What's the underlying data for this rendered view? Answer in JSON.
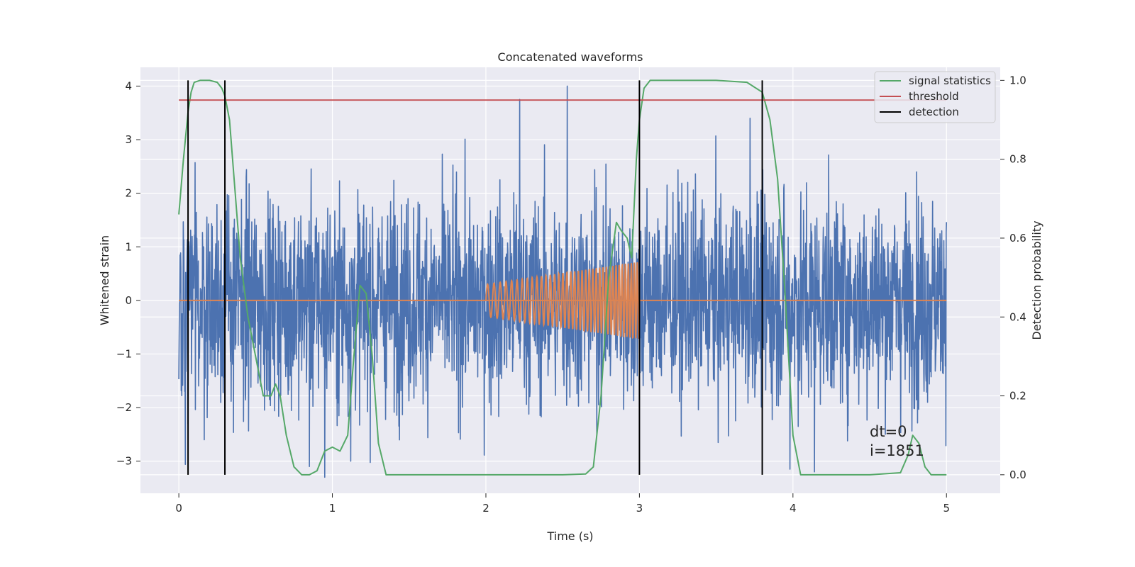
{
  "chart_data": {
    "type": "line",
    "title": "Concatenated waveforms",
    "xlabel": "Time (s)",
    "ylabel": "Whitened strain",
    "y2label": "Detection probability",
    "xlim": [
      -0.25,
      5.35
    ],
    "ylim": [
      -3.6,
      4.35
    ],
    "y2lim": [
      -0.047,
      1.033
    ],
    "x_ticks": [
      0,
      1,
      2,
      3,
      4,
      5
    ],
    "y_ticks": [
      -3,
      -2,
      -1,
      0,
      1,
      2,
      3,
      4
    ],
    "y2_ticks": [
      0.0,
      0.2,
      0.4,
      0.6,
      0.8,
      1.0
    ],
    "x_tick_labels": [
      "0",
      "1",
      "2",
      "3",
      "4",
      "5"
    ],
    "y_tick_labels": [
      "−3",
      "−2",
      "−1",
      "0",
      "1",
      "2",
      "3",
      "4"
    ],
    "y2_tick_labels": [
      "0.0",
      "0.2",
      "0.4",
      "0.6",
      "0.8",
      "1.0"
    ],
    "grid": true,
    "legend_position": "top-right",
    "legend": [
      {
        "label": "signal statistics",
        "color": "#55a868"
      },
      {
        "label": "threshold",
        "color": "#c44e52"
      },
      {
        "label": "detection",
        "color": "#000000"
      }
    ],
    "colors": {
      "strain": "#4c72b0",
      "template": "#dd8452",
      "statistics": "#55a868",
      "threshold": "#c44e52",
      "detection": "#000000",
      "background": "#eaeaf2",
      "grid": "#ffffff"
    },
    "strain_noise": {
      "x_range": [
        0,
        5
      ],
      "approx_peak_abs": 3.9,
      "spikes": [
        {
          "x": 2.22,
          "y": 3.75
        },
        {
          "x": 2.53,
          "y": 4.0
        },
        {
          "x": 3.72,
          "y": 3.4
        },
        {
          "x": 0.06,
          "y": -2.3
        },
        {
          "x": 0.95,
          "y": -3.3
        },
        {
          "x": 0.85,
          "y": -3.1
        },
        {
          "x": 3.98,
          "y": -3.15
        },
        {
          "x": 4.14,
          "y": -3.2
        },
        {
          "x": 1.12,
          "y": -3.0
        }
      ]
    },
    "template": {
      "x_start": 2.0,
      "x_end": 3.0,
      "amp_start": 0.3,
      "amp_end": 0.72,
      "cycles": 38
    },
    "threshold": {
      "y": 0.95,
      "x_range": [
        0,
        5
      ]
    },
    "detections_x": [
      0.06,
      0.3,
      3.0,
      3.8
    ],
    "signal_statistics": {
      "x": [
        0.0,
        0.03,
        0.06,
        0.08,
        0.1,
        0.14,
        0.2,
        0.25,
        0.28,
        0.3,
        0.33,
        0.36,
        0.4,
        0.45,
        0.5,
        0.55,
        0.6,
        0.63,
        0.66,
        0.7,
        0.75,
        0.8,
        0.85,
        0.9,
        0.95,
        1.0,
        1.05,
        1.1,
        1.14,
        1.18,
        1.22,
        1.26,
        1.3,
        1.35,
        1.5,
        2.0,
        2.5,
        2.65,
        2.7,
        2.75,
        2.8,
        2.85,
        2.88,
        2.92,
        2.95,
        2.98,
        3.0,
        3.03,
        3.07,
        3.15,
        3.5,
        3.7,
        3.8,
        3.85,
        3.9,
        3.95,
        4.0,
        4.05,
        4.1,
        4.5,
        4.7,
        4.75,
        4.78,
        4.82,
        4.86,
        4.9,
        5.0
      ],
      "y": [
        0.66,
        0.8,
        0.92,
        0.97,
        0.995,
        1.0,
        1.0,
        0.995,
        0.98,
        0.96,
        0.9,
        0.75,
        0.55,
        0.4,
        0.3,
        0.2,
        0.2,
        0.23,
        0.2,
        0.1,
        0.02,
        0.0,
        0.0,
        0.01,
        0.06,
        0.07,
        0.06,
        0.1,
        0.3,
        0.48,
        0.46,
        0.3,
        0.08,
        0.0,
        0.0,
        0.0,
        0.0,
        0.002,
        0.02,
        0.2,
        0.5,
        0.64,
        0.62,
        0.6,
        0.55,
        0.8,
        0.9,
        0.98,
        1.0,
        1.0,
        1.0,
        0.995,
        0.97,
        0.9,
        0.75,
        0.45,
        0.1,
        0.0,
        0.0,
        0.0,
        0.005,
        0.05,
        0.1,
        0.08,
        0.02,
        0.0,
        0.0
      ]
    },
    "annotations": [
      "dt=0",
      "i=1851"
    ]
  }
}
